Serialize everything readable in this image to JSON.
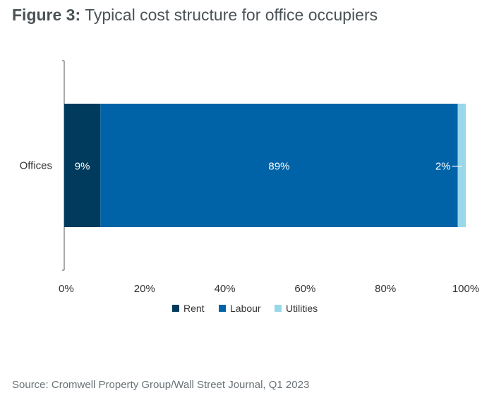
{
  "header": {
    "figure_label": "Figure 3:",
    "title": "Typical cost structure for office occupiers"
  },
  "source": "Source: Cromwell Property Group/Wall Street Journal, Q1 2023",
  "chart_data": {
    "type": "bar",
    "orientation": "horizontal",
    "stacked": true,
    "categories": [
      "Offices"
    ],
    "series": [
      {
        "name": "Rent",
        "values": [
          9
        ],
        "label": "9%",
        "color": "#003a5d"
      },
      {
        "name": "Labour",
        "values": [
          89
        ],
        "label": "89%",
        "color": "#0063a8"
      },
      {
        "name": "Utilities",
        "values": [
          2
        ],
        "label": "2%",
        "color": "#99d7ea"
      }
    ],
    "xlim": [
      0,
      100
    ],
    "xticks": [
      "0%",
      "20%",
      "40%",
      "60%",
      "80%",
      "100%"
    ],
    "grid": false,
    "legend_position": "bottom"
  }
}
